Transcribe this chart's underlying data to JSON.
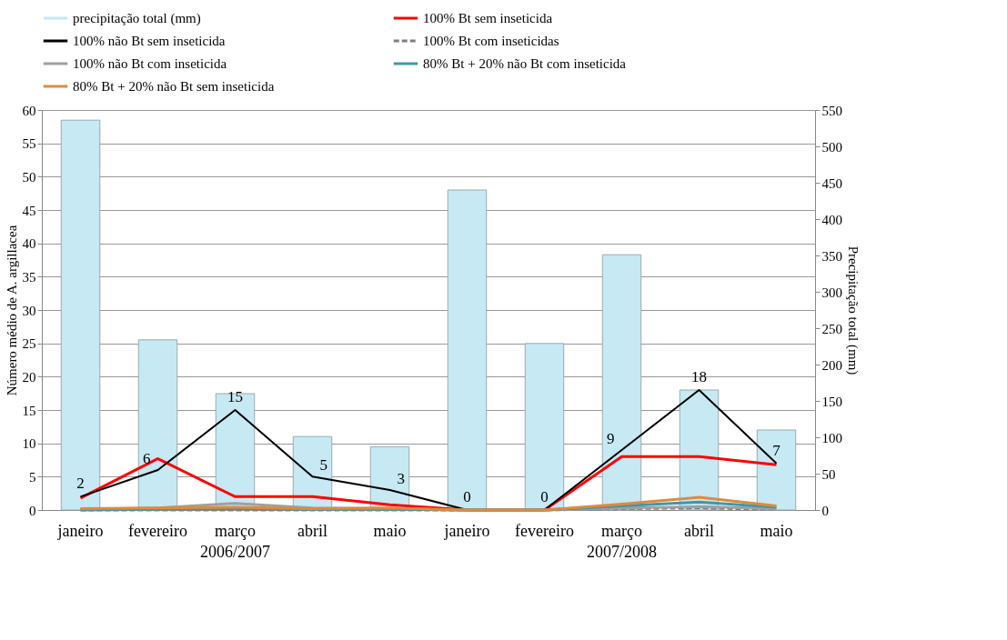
{
  "chart_data": {
    "type": "line",
    "categories": [
      "janeiro",
      "fevereiro",
      "março",
      "abril",
      "maio",
      "janeiro",
      "fevereiro",
      "março",
      "abril",
      "maio"
    ],
    "ylabel": "Número médio de A. argillacea",
    "y2label": "Precipitação total (mm)",
    "ylim": [
      0,
      60
    ],
    "yticks": [
      0,
      5,
      10,
      15,
      20,
      25,
      30,
      35,
      40,
      45,
      50,
      55,
      60
    ],
    "y2lim": [
      0,
      550
    ],
    "y2ticks": [
      0,
      50,
      100,
      150,
      200,
      250,
      300,
      350,
      400,
      450,
      500,
      550
    ],
    "grid": "y",
    "legend": "top",
    "line_style": "solid",
    "annotations": [
      "2006/2007",
      "2007/2008"
    ],
    "series": [
      {
        "name": "precipitação total (mm)",
        "type": "bar",
        "axis": "y2",
        "color": "#c6e9f3",
        "values": [
          536,
          234,
          160,
          101,
          87,
          440,
          229,
          351,
          165,
          110
        ]
      },
      {
        "name": "100% Bt sem inseticida",
        "color": "#ff0000",
        "values": [
          1.8,
          7.7,
          2,
          2,
          0.8,
          0,
          0,
          8,
          8,
          6.8
        ]
      },
      {
        "name": "100% não Bt sem inseticida",
        "color": "#000000",
        "values": [
          2,
          6,
          15,
          5,
          3,
          0,
          0,
          9,
          18,
          7
        ],
        "value_labels": [
          "2",
          "6",
          "15",
          "5",
          "3",
          "0",
          "0",
          "9",
          "18",
          "7"
        ]
      },
      {
        "name": "100% Bt com inseticidas",
        "color": "#808080",
        "line_style": "dashed",
        "values": [
          0,
          0,
          0,
          0,
          0,
          0,
          0,
          0.2,
          0.3,
          0.1
        ]
      },
      {
        "name": "100% não Bt com inseticida",
        "color": "#a0a0a0",
        "values": [
          0.1,
          0.3,
          1,
          0.3,
          0.2,
          0,
          0,
          0.3,
          0.5,
          0.2
        ]
      },
      {
        "name": "80% Bt + 20%  não Bt com inseticida",
        "color": "#3f96ac",
        "values": [
          0,
          0.1,
          0.2,
          0.1,
          0.1,
          0,
          0,
          0.6,
          1.2,
          0.4
        ]
      },
      {
        "name": "80% Bt + 20%  não Bt sem inseticida",
        "color": "#e08a3c",
        "values": [
          0.2,
          0.3,
          0.4,
          0.2,
          0.3,
          0,
          0,
          0.9,
          1.9,
          0.6
        ]
      }
    ]
  }
}
